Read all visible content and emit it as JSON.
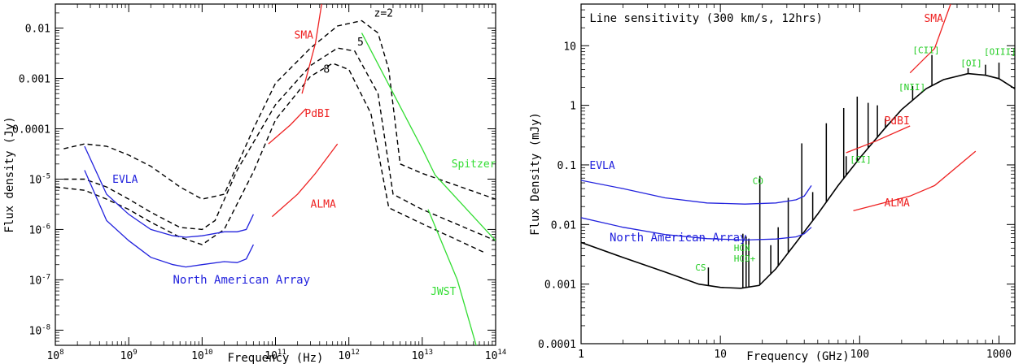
{
  "chart_data": [
    {
      "type": "line",
      "xlabel": "Frequency (Hz)",
      "ylabel": "Flux density (Jy)",
      "xscale": "log",
      "yscale": "log",
      "xlim": [
        100000000.0,
        100000000000000.0
      ],
      "ylim": [
        5e-09,
        0.03
      ],
      "grid": false,
      "x_ticks": [
        {
          "value": 100000000.0,
          "base": "10",
          "exp": "8"
        },
        {
          "value": 1000000000.0,
          "base": "10",
          "exp": "9"
        },
        {
          "value": 10000000000.0,
          "base": "10",
          "exp": "10"
        },
        {
          "value": 100000000000.0,
          "base": "10",
          "exp": "11"
        },
        {
          "value": 1000000000000.0,
          "base": "10",
          "exp": "12"
        },
        {
          "value": 10000000000000.0,
          "base": "10",
          "exp": "13"
        },
        {
          "value": 100000000000000.0,
          "base": "10",
          "exp": "14"
        }
      ],
      "y_ticks": [
        {
          "value": 0.01,
          "text": "0.01"
        },
        {
          "value": 0.001,
          "text": "0.001"
        },
        {
          "value": 0.0001,
          "text": "0.0001"
        },
        {
          "value": 1e-05,
          "base": "10",
          "exp": "-5"
        },
        {
          "value": 1e-06,
          "base": "10",
          "exp": "-6"
        },
        {
          "value": 1e-07,
          "base": "10",
          "exp": "-7"
        },
        {
          "value": 1e-08,
          "base": "10",
          "exp": "-8"
        }
      ],
      "series": [
        {
          "name": "z=2",
          "style": "dashed",
          "color": "#000000",
          "x": [
            130000000.0,
            250000000.0,
            500000000.0,
            1000000000.0,
            2000000000.0,
            5000000000.0,
            10000000000.0,
            20000000000.0,
            50000000000.0,
            100000000000.0,
            300000000000.0,
            700000000000.0,
            1500000000000.0,
            2500000000000.0,
            3500000000000.0,
            5000000000000.0,
            10000000000000.0,
            100000000000000.0
          ],
          "y": [
            4e-05,
            5e-05,
            4.5e-05,
            3e-05,
            1.8e-05,
            7e-06,
            4e-06,
            5e-06,
            0.0001,
            0.0008,
            0.004,
            0.011,
            0.014,
            0.008,
            0.0015,
            2e-05,
            1.3e-05,
            4e-06
          ]
        },
        {
          "name": "5",
          "style": "dashed",
          "color": "#000000",
          "x": [
            130000000.0,
            250000000.0,
            500000000.0,
            1000000000.0,
            2000000000.0,
            5000000000.0,
            10000000000.0,
            15000000000.0,
            30000000000.0,
            100000000000.0,
            300000000000.0,
            700000000000.0,
            1200000000000.0,
            2500000000000.0,
            4000000000000.0,
            10000000000000.0,
            100000000000000.0
          ],
          "y": [
            1e-05,
            1e-05,
            7e-06,
            4e-06,
            2.2e-06,
            1.1e-06,
            1e-06,
            1.5e-06,
            1.5e-05,
            0.0003,
            0.0018,
            0.004,
            0.0035,
            0.0005,
            5e-06,
            2.5e-06,
            6e-07
          ]
        },
        {
          "name": "8",
          "style": "dashed",
          "color": "#000000",
          "x": [
            100000000.0,
            250000000.0,
            500000000.0,
            1000000000.0,
            2000000000.0,
            5000000000.0,
            10000000000.0,
            20000000000.0,
            50000000000.0,
            100000000000.0,
            300000000000.0,
            600000000000.0,
            1000000000000.0,
            2000000000000.0,
            3500000000000.0,
            10000000000000.0,
            70000000000000.0
          ],
          "y": [
            7e-06,
            6e-06,
            4e-06,
            2.5e-06,
            1.4e-06,
            7e-07,
            5e-07,
            1e-06,
            1.4e-05,
            0.00015,
            0.0011,
            0.002,
            0.0015,
            0.0002,
            2.7e-06,
            1.3e-06,
            3.5e-07
          ]
        },
        {
          "name": "EVLA",
          "style": "solid",
          "color": "#2222dd",
          "x": [
            250000000.0,
            500000000.0,
            1000000000.0,
            2000000000.0,
            4000000000.0,
            6000000000.0,
            10000000000.0,
            20000000000.0,
            30000000000.0,
            40000000000.0,
            50000000000.0
          ],
          "y": [
            4.5e-05,
            5e-06,
            2e-06,
            1e-06,
            7.5e-07,
            7e-07,
            7.5e-07,
            9e-07,
            9e-07,
            1e-06,
            2e-06
          ]
        },
        {
          "name": "North American Array",
          "style": "solid",
          "color": "#2222dd",
          "x": [
            250000000.0,
            500000000.0,
            1000000000.0,
            2000000000.0,
            4000000000.0,
            6000000000.0,
            10000000000.0,
            20000000000.0,
            30000000000.0,
            40000000000.0,
            50000000000.0
          ],
          "y": [
            1.5e-05,
            1.5e-06,
            6e-07,
            2.8e-07,
            2e-07,
            1.8e-07,
            2e-07,
            2.3e-07,
            2.2e-07,
            2.6e-07,
            5e-07
          ]
        },
        {
          "name": "SMA",
          "style": "solid",
          "color": "#ee2222",
          "x": [
            230000000000.0,
            350000000000.0,
            450000000000.0
          ],
          "y": [
            0.0005,
            0.005,
            0.05
          ]
        },
        {
          "name": "PdBI",
          "style": "solid",
          "color": "#ee2222",
          "x": [
            80000000000.0,
            160000000000.0,
            260000000000.0
          ],
          "y": [
            5e-05,
            0.00012,
            0.00025
          ]
        },
        {
          "name": "ALMA",
          "style": "solid",
          "color": "#ee2222",
          "x": [
            90000000000.0,
            200000000000.0,
            350000000000.0,
            700000000000.0
          ],
          "y": [
            1.8e-06,
            5e-06,
            1.3e-05,
            5e-05
          ]
        },
        {
          "name": "Spitzer",
          "style": "solid",
          "color": "#33dd33",
          "x": [
            1500000000000.0,
            10000000000000.0,
            15000000000000.0,
            100000000000000.0
          ],
          "y": [
            0.008,
            4e-05,
            1.2e-05,
            6e-07
          ]
        },
        {
          "name": "JWST",
          "style": "solid",
          "color": "#33dd33",
          "x": [
            12000000000000.0,
            30000000000000.0,
            60000000000000.0
          ],
          "y": [
            2.5e-06,
            1e-07,
            3e-09
          ]
        }
      ],
      "annotations": [
        {
          "id": "z2",
          "text": "z=2",
          "x": 2200000000000.0,
          "y": 0.017,
          "color": "#000000"
        },
        {
          "id": "z5",
          "text": "5",
          "x": 1300000000000.0,
          "y": 0.0045,
          "color": "#000000"
        },
        {
          "id": "z8",
          "text": "8",
          "x": 450000000000.0,
          "y": 0.0013,
          "color": "#000000"
        },
        {
          "id": "sma",
          "text": "SMA",
          "x": 180000000000.0,
          "y": 0.0062,
          "color": "#ee2222"
        },
        {
          "id": "pdbi",
          "text": "PdBI",
          "x": 250000000000.0,
          "y": 0.00017,
          "color": "#ee2222"
        },
        {
          "id": "alma",
          "text": "ALMA",
          "x": 300000000000.0,
          "y": 2.7e-06,
          "color": "#ee2222"
        },
        {
          "id": "evla",
          "text": "EVLA",
          "x": 600000000.0,
          "y": 8.5e-06,
          "color": "#2222dd"
        },
        {
          "id": "naa",
          "text": "North American Array",
          "x": 4000000000.0,
          "y": 8.5e-08,
          "color": "#2222dd"
        },
        {
          "id": "spitzer",
          "text": "Spitzer",
          "x": 25000000000000.0,
          "y": 1.7e-05,
          "color": "#33dd33"
        },
        {
          "id": "jwst",
          "text": "JWST",
          "x": 13000000000000.0,
          "y": 5e-08,
          "color": "#33dd33"
        }
      ]
    },
    {
      "type": "line",
      "title": "Line sensitivity (300 km/s, 12hrs)",
      "xlabel": "Frequency (GHz)",
      "ylabel": "Flux Density (mJy)",
      "xscale": "log",
      "yscale": "log",
      "xlim": [
        1,
        1300
      ],
      "ylim": [
        0.0001,
        50
      ],
      "grid": false,
      "x_ticks": [
        {
          "value": 1,
          "text": "1"
        },
        {
          "value": 10,
          "text": "10"
        },
        {
          "value": 100,
          "text": "100"
        },
        {
          "value": 1000,
          "text": "1000"
        }
      ],
      "y_ticks": [
        {
          "value": 10,
          "text": "10"
        },
        {
          "value": 1,
          "text": "1"
        },
        {
          "value": 0.1,
          "text": "0.1"
        },
        {
          "value": 0.01,
          "text": "0.01"
        },
        {
          "value": 0.001,
          "text": "0.001"
        },
        {
          "value": 0.0001,
          "text": "0.0001"
        }
      ],
      "series": [
        {
          "name": "continuum",
          "style": "solid",
          "color": "#000000",
          "x": [
            1,
            2,
            4,
            7,
            10,
            14,
            19,
            25,
            35,
            50,
            70,
            100,
            150,
            200,
            300,
            400,
            600,
            800,
            1000,
            1300
          ],
          "y": [
            0.005,
            0.0028,
            0.0016,
            0.001,
            0.00088,
            0.00085,
            0.00095,
            0.0018,
            0.005,
            0.015,
            0.045,
            0.13,
            0.4,
            0.85,
            1.9,
            2.7,
            3.4,
            3.2,
            2.8,
            1.9
          ]
        },
        {
          "name": "EVLA",
          "style": "solid",
          "color": "#2222dd",
          "x": [
            1,
            2,
            4,
            8,
            15,
            25,
            35,
            40,
            45
          ],
          "y": [
            0.055,
            0.04,
            0.028,
            0.023,
            0.022,
            0.023,
            0.026,
            0.03,
            0.045
          ]
        },
        {
          "name": "North American Array",
          "style": "solid",
          "color": "#2222dd",
          "x": [
            1,
            2,
            4,
            8,
            15,
            25,
            35,
            40,
            45
          ],
          "y": [
            0.013,
            0.009,
            0.0068,
            0.0058,
            0.0055,
            0.0057,
            0.0062,
            0.007,
            0.009
          ]
        },
        {
          "name": "SMA",
          "style": "solid",
          "color": "#ee2222",
          "x": [
            230,
            345,
            450
          ],
          "y": [
            3.5,
            9,
            50
          ]
        },
        {
          "name": "PdBI",
          "style": "solid",
          "color": "#ee2222",
          "x": [
            80,
            130,
            230
          ],
          "y": [
            0.16,
            0.25,
            0.45
          ]
        },
        {
          "name": "ALMA",
          "style": "solid",
          "color": "#ee2222",
          "x": [
            90,
            230,
            345,
            680
          ],
          "y": [
            0.017,
            0.03,
            0.045,
            0.17
          ]
        }
      ],
      "emission_lines": [
        {
          "x": 8.2,
          "peak": 0.0019
        },
        {
          "x": 14.5,
          "peak": 0.007
        },
        {
          "x": 15.3,
          "peak": 0.0063
        },
        {
          "x": 16.0,
          "peak": 0.0058
        },
        {
          "x": 19.2,
          "peak": 0.065
        },
        {
          "x": 23,
          "peak": 0.0045
        },
        {
          "x": 26,
          "peak": 0.009
        },
        {
          "x": 30.7,
          "peak": 0.028
        },
        {
          "x": 38.4,
          "peak": 0.23
        },
        {
          "x": 46,
          "peak": 0.035
        },
        {
          "x": 57.6,
          "peak": 0.5
        },
        {
          "x": 76.8,
          "peak": 0.9
        },
        {
          "x": 80,
          "peak": 0.14
        },
        {
          "x": 96,
          "peak": 1.4
        },
        {
          "x": 115,
          "peak": 1.1
        },
        {
          "x": 134,
          "peak": 1.0
        },
        {
          "x": 153,
          "peak": 0.6
        },
        {
          "x": 240,
          "peak": 2.1
        },
        {
          "x": 330,
          "peak": 7.0
        },
        {
          "x": 600,
          "peak": 4.2
        },
        {
          "x": 800,
          "peak": 4.8
        },
        {
          "x": 1000,
          "peak": 5.2
        }
      ],
      "annotations": [
        {
          "id": "title",
          "text": "Line sensitivity (300 km/s, 12hrs)",
          "x": 1.15,
          "y": 25,
          "color": "#000000"
        },
        {
          "id": "evla",
          "text": "EVLA",
          "x": 1.15,
          "y": 0.085,
          "color": "#2222dd"
        },
        {
          "id": "naa",
          "text": "North American Array",
          "x": 1.6,
          "y": 0.0052,
          "color": "#2222dd"
        },
        {
          "id": "sma",
          "text": "SMA",
          "x": 290,
          "y": 25,
          "color": "#ee2222"
        },
        {
          "id": "pdbi",
          "text": "PdBI",
          "x": 150,
          "y": 0.48,
          "color": "#ee2222"
        },
        {
          "id": "alma",
          "text": "ALMA",
          "x": 150,
          "y": 0.02,
          "color": "#ee2222"
        },
        {
          "id": "co",
          "text": "CO",
          "x": 17,
          "y": 0.048,
          "color": "#22cc22"
        },
        {
          "id": "cs",
          "text": "CS",
          "x": 6.6,
          "y": 0.0017,
          "color": "#22cc22"
        },
        {
          "id": "hcn",
          "text": "HCN",
          "x": 12.5,
          "y": 0.0036,
          "color": "#22cc22"
        },
        {
          "id": "hco",
          "text": "HCO+",
          "x": 12.5,
          "y": 0.0024,
          "color": "#22cc22"
        },
        {
          "id": "ci",
          "text": "[CI]",
          "x": 85,
          "y": 0.11,
          "color": "#22cc22"
        },
        {
          "id": "nii",
          "text": "[NII]",
          "x": 190,
          "y": 1.8,
          "color": "#22cc22"
        },
        {
          "id": "cii",
          "text": "[CII]",
          "x": 240,
          "y": 7.5,
          "color": "#22cc22"
        },
        {
          "id": "oi",
          "text": "[OI]",
          "x": 530,
          "y": 4.5,
          "color": "#22cc22"
        },
        {
          "id": "oiii",
          "text": "[OIII]",
          "x": 780,
          "y": 7,
          "color": "#22cc22"
        }
      ]
    }
  ]
}
